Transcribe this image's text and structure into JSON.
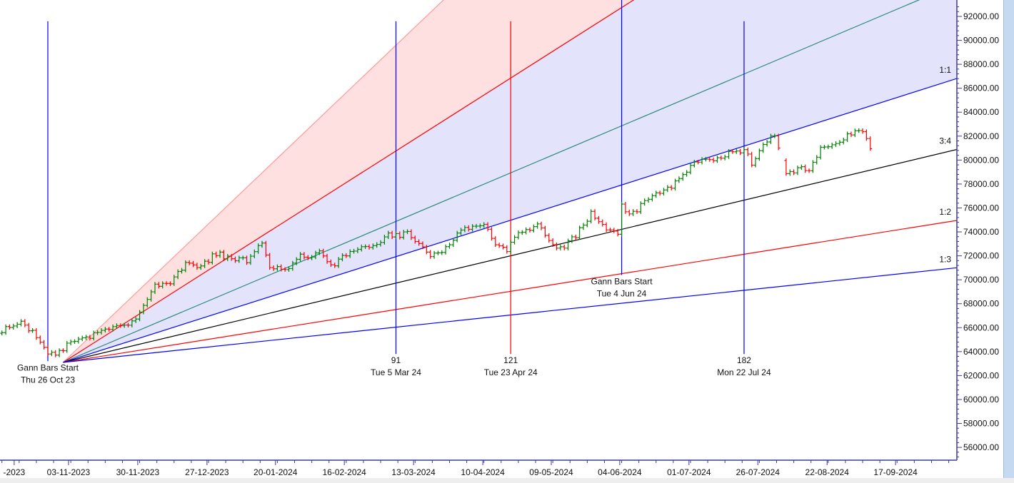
{
  "chart_data": {
    "type": "line",
    "subtype": "ohlc-bars-with-gann-fan",
    "title": "",
    "xlabel": "",
    "ylabel": "",
    "ylim": [
      54500,
      93500
    ],
    "y_ticks": [
      56000,
      58000,
      60000,
      62000,
      64000,
      66000,
      68000,
      70000,
      72000,
      74000,
      76000,
      78000,
      80000,
      82000,
      84000,
      86000,
      88000,
      90000,
      92000
    ],
    "y_tick_labels": [
      "56000.00",
      "58000.00",
      "60000.00",
      "62000.00",
      "64000.00",
      "66000.00",
      "68000.00",
      "70000.00",
      "72000.00",
      "74000.00",
      "76000.00",
      "78000.00",
      "80000.00",
      "82000.00",
      "84000.00",
      "86000.00",
      "88000.00",
      "90000.00",
      "92000.00"
    ],
    "x_unit": "trading bars from Gann start (Thu 26 Oct 23 = 0)",
    "x_range": [
      -12.5,
      237.6
    ],
    "x_ticks": [
      {
        "bar": -8.8,
        "label": "-2023"
      },
      {
        "bar": 5.4,
        "label": "03-11-2023"
      },
      {
        "bar": 23.5,
        "label": "30-11-2023"
      },
      {
        "bar": 41.6,
        "label": "27-12-2023"
      },
      {
        "bar": 59.5,
        "label": "20-01-2024"
      },
      {
        "bar": 77.5,
        "label": "16-02-2024"
      },
      {
        "bar": 95.6,
        "label": "13-03-2024"
      },
      {
        "bar": 113.7,
        "label": "10-04-2024"
      },
      {
        "bar": 131.6,
        "label": "09-05-2024"
      },
      {
        "bar": 149.5,
        "label": "04-06-2024"
      },
      {
        "bar": 167.6,
        "label": "01-07-2024"
      },
      {
        "bar": 185.6,
        "label": "26-07-2024"
      },
      {
        "bar": 203.7,
        "label": "22-08-2024"
      },
      {
        "bar": 221.6,
        "label": "17-09-2024"
      }
    ],
    "price_path": [
      [
        -13,
        65660
      ],
      [
        -7,
        66430
      ],
      [
        -3,
        65360
      ],
      [
        0,
        64050
      ],
      [
        2,
        63570
      ],
      [
        6,
        64880
      ],
      [
        12,
        65360
      ],
      [
        17,
        65950
      ],
      [
        23,
        66550
      ],
      [
        26,
        68340
      ],
      [
        28,
        69530
      ],
      [
        32,
        69830
      ],
      [
        36,
        71200
      ],
      [
        40,
        71020
      ],
      [
        44,
        72220
      ],
      [
        47,
        71800
      ],
      [
        52,
        71620
      ],
      [
        56,
        73110
      ],
      [
        58,
        71020
      ],
      [
        62,
        70720
      ],
      [
        66,
        71920
      ],
      [
        71,
        72220
      ],
      [
        75,
        71200
      ],
      [
        79,
        72510
      ],
      [
        85,
        72810
      ],
      [
        89,
        73700
      ],
      [
        94,
        73820
      ],
      [
        98,
        72810
      ],
      [
        100,
        71920
      ],
      [
        104,
        72630
      ],
      [
        107,
        74000
      ],
      [
        112,
        74420
      ],
      [
        114,
        74780
      ],
      [
        117,
        73110
      ],
      [
        120,
        72510
      ],
      [
        123,
        74000
      ],
      [
        128,
        74600
      ],
      [
        130,
        73700
      ],
      [
        134,
        72510
      ],
      [
        138,
        73700
      ],
      [
        142,
        75490
      ],
      [
        146,
        74300
      ],
      [
        149,
        74000
      ],
      [
        150,
        76090
      ],
      [
        153,
        75490
      ],
      [
        156,
        76680
      ],
      [
        161,
        77280
      ],
      [
        165,
        78470
      ],
      [
        170,
        79960
      ],
      [
        174,
        79960
      ],
      [
        178,
        80560
      ],
      [
        182,
        80860
      ],
      [
        184,
        79660
      ],
      [
        187,
        81450
      ],
      [
        190,
        81930
      ],
      [
        191,
        81150
      ],
      [
        193,
        78770
      ],
      [
        197,
        79360
      ],
      [
        199,
        79060
      ],
      [
        202,
        80860
      ],
      [
        207,
        81450
      ],
      [
        211,
        82460
      ],
      [
        213,
        82160
      ],
      [
        215,
        81150
      ]
    ],
    "gann_fan": {
      "origin_bar": 4,
      "origin_price": 63100,
      "unit_points_per_bar": 101.5,
      "lines": [
        {
          "ratio": 3,
          "label": "",
          "color": "#ff9a9a",
          "fill": "#ffe0e0"
        },
        {
          "ratio": 2,
          "label": "",
          "color": "#ff0000",
          "fill": "#e3e3fb"
        },
        {
          "ratio": 1.3333,
          "label": "",
          "color": "#2e8b7a"
        },
        {
          "ratio": 1,
          "label": "1:1",
          "color": "#0000ff"
        },
        {
          "ratio": 0.75,
          "label": "3:4",
          "color": "#000000"
        },
        {
          "ratio": 0.5,
          "label": "1:2",
          "color": "#ff0000"
        },
        {
          "ratio": 0.3333,
          "label": "1:3",
          "color": "#0000ff"
        }
      ]
    },
    "vertical_markers": [
      {
        "bar": 0,
        "color": "#0000ff",
        "top_price": 91600,
        "bottom_price": 63200,
        "count": "Gann Bars Start",
        "date": "Thu 26 Oct 23"
      },
      {
        "bar": 91,
        "color": "#0000ff",
        "top_price": 91600,
        "bottom_price": 63800,
        "count": "91",
        "date": "Tue 5 Mar 24"
      },
      {
        "bar": 121,
        "color": "#ff0000",
        "top_price": 91600,
        "bottom_price": 63800,
        "count": "121",
        "date": "Tue 23 Apr 24"
      },
      {
        "bar": 150,
        "color": "#0000ff",
        "top_price": 93500,
        "bottom_price": 70400,
        "count": "Gann Bars Start",
        "date": "Tue 4 Jun 24"
      },
      {
        "bar": 182,
        "color": "#0000ff",
        "top_price": 91600,
        "bottom_price": 63800,
        "count": "182",
        "date": "Mon 22 Jul 24"
      }
    ],
    "colors": {
      "up": "#008000",
      "down": "#ff0000",
      "axis": "#3a3aa0"
    }
  }
}
